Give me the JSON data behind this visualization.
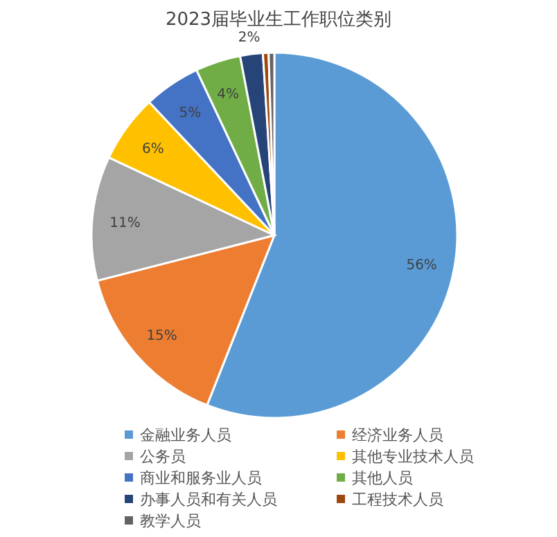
{
  "chart_data": {
    "type": "pie",
    "title": "2023届毕业生工作职位类别",
    "categories": [
      "金融业务人员",
      "经济业务人员",
      "公务员",
      "其他专业技术人员",
      "商业和服务业人员",
      "其他人员",
      "办事人员和有关人员",
      "工程技术人员",
      "教学人员"
    ],
    "values": [
      56,
      15,
      11,
      6,
      5,
      4,
      2,
      0.5,
      0.5
    ],
    "colors": [
      "#5b9bd5",
      "#ed7d31",
      "#a5a5a5",
      "#ffc000",
      "#4472c4",
      "#70ad47",
      "#264478",
      "#9e480e",
      "#636363"
    ],
    "value_labels": [
      "56%",
      "15%",
      "11%",
      "6%",
      "5%",
      "4%",
      "2%",
      null,
      null
    ],
    "legend": "bottom"
  }
}
